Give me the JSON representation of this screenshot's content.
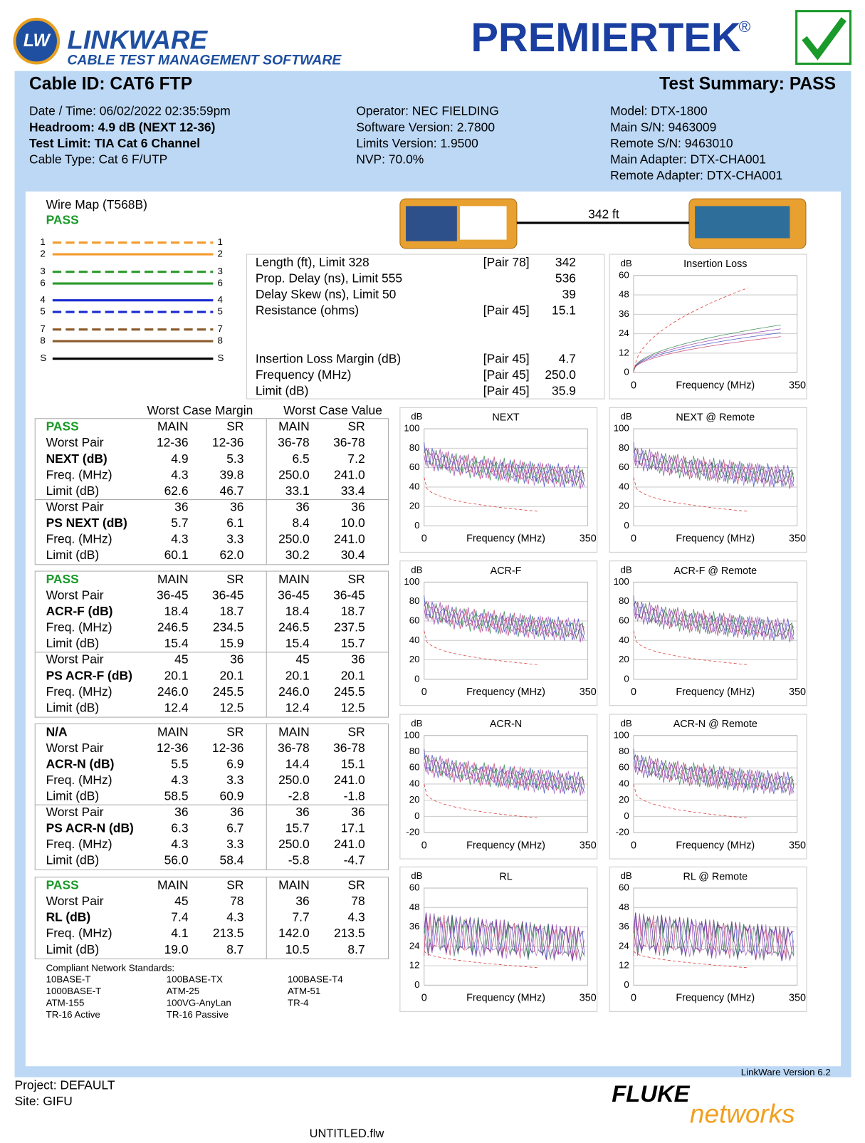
{
  "header": {
    "badge": "LW",
    "product": "LINKWARE",
    "product_sub": "CABLE TEST MANAGEMENT SOFTWARE",
    "brand": "PREMIERTEK",
    "registered": "®"
  },
  "summary": {
    "cable_id": "Cable ID: CAT6 FTP",
    "result": "Test Summary: PASS",
    "columns": [
      [
        "Date / Time: 06/02/2022 02:35:59pm",
        "Headroom: 4.9 dB (NEXT 12-36)",
        "Test Limit: TIA Cat 6 Channel",
        "Cable Type: Cat 6 F/UTP"
      ],
      [
        "Operator: NEC FIELDING",
        "Software Version: 2.7800",
        "Limits Version: 1.9500",
        "NVP: 70.0%"
      ],
      [
        "Model: DTX-1800",
        "Main S/N: 9463009",
        "Remote S/N: 9463010",
        "Main Adapter: DTX-CHA001",
        "Remote Adapter: DTX-CHA001"
      ]
    ]
  },
  "wire_map": {
    "title": "Wire Map (T568B)",
    "status": "PASS",
    "pins": [
      {
        "left": "1",
        "right": "1",
        "color": "#f39a2b",
        "dashed": true
      },
      {
        "left": "2",
        "right": "2",
        "color": "#f39a2b",
        "dashed": false
      },
      {
        "left": "3",
        "right": "3",
        "color": "#2a9a2a",
        "dashed": true
      },
      {
        "left": "6",
        "right": "6",
        "color": "#2a9a2a",
        "dashed": false
      },
      {
        "left": "4",
        "right": "4",
        "color": "#1a2bd0",
        "dashed": false
      },
      {
        "left": "5",
        "right": "5",
        "color": "#1a2bd0",
        "dashed": true
      },
      {
        "left": "7",
        "right": "7",
        "color": "#8a5a2a",
        "dashed": true
      },
      {
        "left": "8",
        "right": "8",
        "color": "#8a5a2a",
        "dashed": false
      },
      {
        "left": "S",
        "right": "S",
        "color": "#000000",
        "dashed": false
      }
    ]
  },
  "length_label": "342 ft",
  "measurements": [
    {
      "label": "Length (ft), Limit 328",
      "pair": "[Pair 78]",
      "value": "342"
    },
    {
      "label": "Prop. Delay (ns), Limit 555",
      "value": "536"
    },
    {
      "label": "Delay Skew (ns), Limit 50",
      "value": "39"
    },
    {
      "label": "Resistance (ohms)",
      "pair": "[Pair 45]",
      "value": "15.1"
    },
    {
      "label": "Insertion Loss Margin (dB)",
      "pair": "[Pair 45]",
      "value": "4.7"
    },
    {
      "label": "Frequency (MHz)",
      "pair": "[Pair 45]",
      "value": "250.0"
    },
    {
      "label": "Limit (dB)",
      "pair": "[Pair 45]",
      "value": "35.9"
    }
  ],
  "tables": {
    "margin_header": "Worst Case Margin",
    "value_header": "Worst Case Value",
    "sections": [
      {
        "head": [
          "PASS",
          "MAIN",
          "SR",
          "MAIN",
          "SR"
        ],
        "rows": [
          [
            "Worst Pair",
            "12-36",
            "12-36",
            "36-78",
            "36-78"
          ],
          [
            "NEXT (dB)",
            "4.9",
            "5.3",
            "6.5",
            "7.2"
          ],
          [
            "Freq. (MHz)",
            "4.3",
            "39.8",
            "250.0",
            "241.0"
          ],
          [
            "Limit (dB)",
            "62.6",
            "46.7",
            "33.1",
            "33.4"
          ],
          [
            "Worst Pair",
            "36",
            "36",
            "36",
            "36"
          ],
          [
            "PS NEXT (dB)",
            "5.7",
            "6.1",
            "8.4",
            "10.0"
          ],
          [
            "Freq. (MHz)",
            "4.3",
            "3.3",
            "250.0",
            "241.0"
          ],
          [
            "Limit (dB)",
            "60.1",
            "62.0",
            "30.2",
            "30.4"
          ]
        ]
      },
      {
        "head": [
          "PASS",
          "MAIN",
          "SR",
          "MAIN",
          "SR"
        ],
        "rows": [
          [
            "Worst Pair",
            "36-45",
            "36-45",
            "36-45",
            "36-45"
          ],
          [
            "ACR-F (dB)",
            "18.4",
            "18.7",
            "18.4",
            "18.7"
          ],
          [
            "Freq. (MHz)",
            "246.5",
            "234.5",
            "246.5",
            "237.5"
          ],
          [
            "Limit (dB)",
            "15.4",
            "15.9",
            "15.4",
            "15.7"
          ],
          [
            "Worst Pair",
            "45",
            "36",
            "45",
            "36"
          ],
          [
            "PS ACR-F (dB)",
            "20.1",
            "20.1",
            "20.1",
            "20.1"
          ],
          [
            "Freq. (MHz)",
            "246.0",
            "245.5",
            "246.0",
            "245.5"
          ],
          [
            "Limit (dB)",
            "12.4",
            "12.5",
            "12.4",
            "12.5"
          ]
        ]
      },
      {
        "head": [
          "N/A",
          "MAIN",
          "SR",
          "MAIN",
          "SR"
        ],
        "rows": [
          [
            "Worst Pair",
            "12-36",
            "12-36",
            "36-78",
            "36-78"
          ],
          [
            "ACR-N (dB)",
            "5.5",
            "6.9",
            "14.4",
            "15.1"
          ],
          [
            "Freq. (MHz)",
            "4.3",
            "3.3",
            "250.0",
            "241.0"
          ],
          [
            "Limit (dB)",
            "58.5",
            "60.9",
            "-2.8",
            "-1.8"
          ],
          [
            "Worst Pair",
            "36",
            "36",
            "36",
            "36"
          ],
          [
            "PS ACR-N (dB)",
            "6.3",
            "6.7",
            "15.7",
            "17.1"
          ],
          [
            "Freq. (MHz)",
            "4.3",
            "3.3",
            "250.0",
            "241.0"
          ],
          [
            "Limit (dB)",
            "56.0",
            "58.4",
            "-5.8",
            "-4.7"
          ]
        ]
      },
      {
        "head": [
          "PASS",
          "MAIN",
          "SR",
          "MAIN",
          "SR"
        ],
        "rows": [
          [
            "Worst Pair",
            "45",
            "78",
            "36",
            "78"
          ],
          [
            "RL (dB)",
            "7.4",
            "4.3",
            "7.7",
            "4.3"
          ],
          [
            "Freq. (MHz)",
            "4.1",
            "213.5",
            "142.0",
            "213.5"
          ],
          [
            "Limit (dB)",
            "19.0",
            "8.7",
            "10.5",
            "8.7"
          ]
        ]
      }
    ]
  },
  "standards": {
    "title": "Compliant Network Standards:",
    "items": [
      "10BASE-T",
      "100BASE-TX",
      "100BASE-T4",
      "1000BASE-T",
      "ATM-25",
      "ATM-51",
      "ATM-155",
      "100VG-AnyLan",
      "TR-4",
      "TR-16 Active",
      "TR-16 Passive"
    ]
  },
  "charts": [
    {
      "title": "Insertion Loss",
      "ylabel": "dB",
      "xlabel": "Frequency (MHz)",
      "yticks": [
        0,
        12,
        24,
        36,
        48,
        60
      ],
      "xticks": [
        0,
        350
      ]
    },
    {
      "title": "NEXT",
      "ylabel": "dB",
      "xlabel": "Frequency (MHz)",
      "yticks": [
        0,
        20,
        40,
        60,
        80,
        100
      ],
      "xticks": [
        0,
        350
      ]
    },
    {
      "title": "NEXT @ Remote",
      "ylabel": "dB",
      "xlabel": "Frequency (MHz)",
      "yticks": [
        0,
        20,
        40,
        60,
        80,
        100
      ],
      "xticks": [
        0,
        350
      ]
    },
    {
      "title": "ACR-F",
      "ylabel": "dB",
      "xlabel": "Frequency (MHz)",
      "yticks": [
        0,
        20,
        40,
        60,
        80,
        100
      ],
      "xticks": [
        0,
        350
      ]
    },
    {
      "title": "ACR-F @ Remote",
      "ylabel": "dB",
      "xlabel": "Frequency (MHz)",
      "yticks": [
        0,
        20,
        40,
        60,
        80,
        100
      ],
      "xticks": [
        0,
        350
      ]
    },
    {
      "title": "ACR-N",
      "ylabel": "dB",
      "xlabel": "Frequency (MHz)",
      "yticks": [
        -20,
        0,
        20,
        40,
        60,
        80,
        100
      ],
      "xticks": [
        0,
        350
      ]
    },
    {
      "title": "ACR-N @ Remote",
      "ylabel": "dB",
      "xlabel": "Frequency (MHz)",
      "yticks": [
        -20,
        0,
        20,
        40,
        60,
        80,
        100
      ],
      "xticks": [
        0,
        350
      ]
    },
    {
      "title": "RL",
      "ylabel": "dB",
      "xlabel": "Frequency (MHz)",
      "yticks": [
        0,
        12,
        24,
        36,
        48,
        60
      ],
      "xticks": [
        0,
        350
      ]
    },
    {
      "title": "RL @ Remote",
      "ylabel": "dB",
      "xlabel": "Frequency (MHz)",
      "yticks": [
        0,
        12,
        24,
        36,
        48,
        60
      ],
      "xticks": [
        0,
        350
      ]
    }
  ],
  "footer": {
    "project": "Project: DEFAULT",
    "site": "Site: GIFU",
    "version": "LinkWare Version  6.2",
    "fluke": "FLUKE",
    "networks": "networks",
    "file": "UNTITLED.flw"
  }
}
